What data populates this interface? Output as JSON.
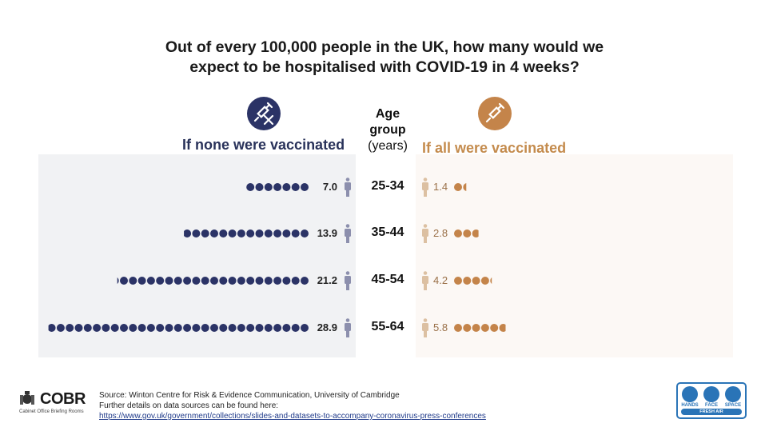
{
  "title_line1": "Out of every 100,000 people in the UK, how many would we",
  "title_line2": "expect to be hospitalised with COVID-19 in 4 weeks?",
  "colors": {
    "unvaccinated": "#2b3366",
    "vaccinated": "#c4844a",
    "person_unvaccinated": "#8c8fad",
    "person_vaccinated": "#dcc0a2"
  },
  "icons": {
    "unvaccinated": "syringe-crossed-icon",
    "vaccinated": "syringe-icon"
  },
  "chart_data": {
    "type": "table",
    "title": "Out of every 100,000 people in the UK, how many would we expect to be hospitalised with COVID-19 in 4 weeks?",
    "age_header": [
      "Age",
      "group",
      "(years)"
    ],
    "categories": [
      "25-34",
      "35-44",
      "45-54",
      "55-64"
    ],
    "series": [
      {
        "name": "If none were vaccinated",
        "values": [
          7.0,
          13.9,
          21.2,
          28.9
        ],
        "labels": [
          "7.0",
          "13.9",
          "21.2",
          "28.9"
        ]
      },
      {
        "name": "If all were vaccinated",
        "values": [
          1.4,
          2.8,
          4.2,
          5.8
        ],
        "labels": [
          "1.4",
          "2.8",
          "4.2",
          "5.8"
        ]
      }
    ],
    "unit": "one dot = 1 person per 100,000"
  },
  "footer": {
    "source": "Source: Winton Centre for Risk & Evidence Communication, University of Cambridge",
    "details": "Further details on data sources can be found here:",
    "link": "https://www.gov.uk/government/collections/slides-and-datasets-to-accompany-coronavirus-press-conferences"
  },
  "cobr": {
    "name": "COBR",
    "subtitle": "Cabinet Office Briefing Rooms"
  },
  "hfs": {
    "hands": "HANDS",
    "face": "FACE",
    "space": "SPACE",
    "fresh_air": "FRESH AIR"
  }
}
